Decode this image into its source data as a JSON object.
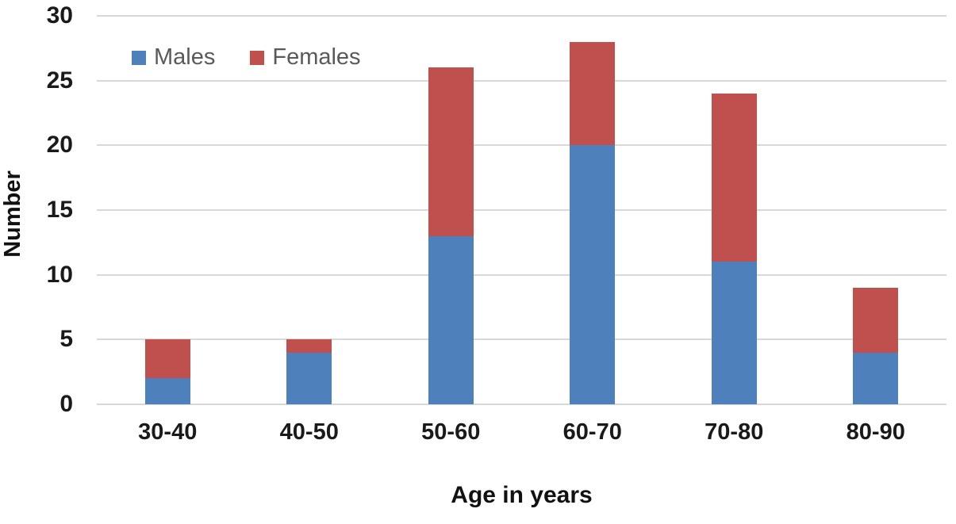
{
  "chart_data": {
    "type": "bar",
    "stacked": true,
    "title": "",
    "categories": [
      "30-40",
      "40-50",
      "50-60",
      "60-70",
      "70-80",
      "80-90"
    ],
    "series": [
      {
        "name": "Males",
        "color": "#4E81BC",
        "values": [
          2,
          4,
          13,
          20,
          11,
          4
        ]
      },
      {
        "name": "Females",
        "color": "#C0504D",
        "values": [
          3,
          1,
          13,
          8,
          13,
          5
        ]
      }
    ],
    "totals": [
      5,
      5,
      26,
      28,
      24,
      9
    ],
    "xlabel": "Age in years",
    "ylabel": "Number",
    "ylim": [
      0,
      30
    ],
    "yticks": [
      0,
      5,
      10,
      15,
      20,
      25,
      30
    ],
    "grid": "horizontal",
    "gridline_color": "#D8D8D8",
    "background": "#FFFFFF",
    "tick_text_color": "#1A1A1A",
    "legend_text_color": "#595959",
    "legend_position": "top-left-inside"
  }
}
